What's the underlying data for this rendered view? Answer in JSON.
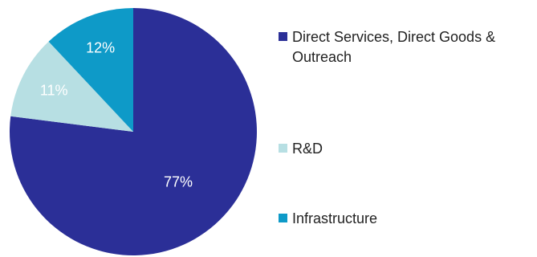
{
  "chart_data": {
    "type": "pie",
    "title": "",
    "categories": [
      "Direct Services, Direct Goods & Outreach",
      "R&D",
      "Infrastructure"
    ],
    "values": [
      77,
      11,
      12
    ],
    "labels": [
      "77%",
      "11%",
      "12%"
    ],
    "colors": [
      "#2b2f97",
      "#b7dfe3",
      "#0e9ac8"
    ],
    "start_angle_deg": 0,
    "direction": "clockwise",
    "legend_position": "right",
    "legend": [
      {
        "label": "Direct Services, Direct Goods & Outreach",
        "color": "#2b2f97"
      },
      {
        "label": "R&D",
        "color": "#b7dfe3"
      },
      {
        "label": "Infrastructure",
        "color": "#0e9ac8"
      }
    ]
  }
}
